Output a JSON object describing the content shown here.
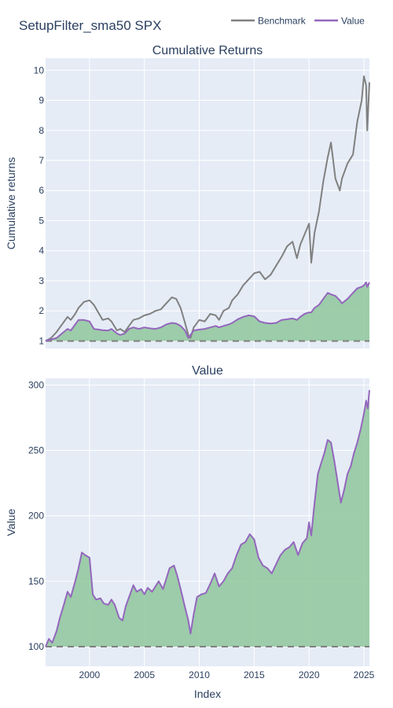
{
  "page_title": "SetupFilter_sma50 SPX",
  "legend": [
    {
      "name": "Benchmark",
      "color": "#808080"
    },
    {
      "name": "Value",
      "color": "#9467bd"
    }
  ],
  "colors": {
    "plot_bg": "#e5ecf6",
    "grid": "#ffffff",
    "fill": "#8fc79b",
    "baseline": "#808080",
    "text": "#2a3f5f"
  },
  "chart_data": [
    {
      "type": "line",
      "title": "Cumulative Returns",
      "ylabel": "Cumulative returns",
      "xlabel": "",
      "xlim": [
        1996.0,
        2025.5
      ],
      "ylim": [
        0.75,
        10.4
      ],
      "yticks": [
        1,
        2,
        3,
        4,
        5,
        6,
        7,
        8,
        9,
        10
      ],
      "xticks": [
        2000,
        2005,
        2010,
        2015,
        2020,
        2025
      ],
      "x_ticklabels_shown": false,
      "baseline": 1,
      "fill_series": "Value",
      "series": [
        {
          "name": "Benchmark",
          "color": "#808080",
          "x": [
            1996.0,
            1996.5,
            1997.0,
            1997.5,
            1998.0,
            1998.3,
            1998.7,
            1999.0,
            1999.5,
            2000.0,
            2000.4,
            2000.8,
            2001.2,
            2001.7,
            2002.0,
            2002.5,
            2002.8,
            2003.2,
            2003.6,
            2004.0,
            2004.5,
            2005.0,
            2005.5,
            2006.0,
            2006.5,
            2007.0,
            2007.5,
            2007.9,
            2008.3,
            2008.7,
            2009.0,
            2009.2,
            2009.5,
            2010.0,
            2010.5,
            2011.0,
            2011.5,
            2011.8,
            2012.2,
            2012.7,
            2013.0,
            2013.5,
            2014.0,
            2014.5,
            2015.0,
            2015.5,
            2016.0,
            2016.5,
            2017.0,
            2017.5,
            2018.0,
            2018.5,
            2018.9,
            2019.2,
            2019.6,
            2020.0,
            2020.2,
            2020.5,
            2020.9,
            2021.3,
            2021.7,
            2022.0,
            2022.4,
            2022.8,
            2023.0,
            2023.5,
            2024.0,
            2024.4,
            2024.8,
            2025.0,
            2025.2,
            2025.3,
            2025.5
          ],
          "y": [
            1.0,
            1.1,
            1.3,
            1.55,
            1.8,
            1.7,
            1.9,
            2.1,
            2.3,
            2.35,
            2.2,
            1.95,
            1.7,
            1.75,
            1.65,
            1.35,
            1.4,
            1.3,
            1.5,
            1.7,
            1.75,
            1.85,
            1.9,
            2.0,
            2.05,
            2.25,
            2.45,
            2.4,
            2.1,
            1.6,
            1.2,
            1.1,
            1.45,
            1.7,
            1.65,
            1.9,
            1.85,
            1.7,
            2.0,
            2.1,
            2.35,
            2.55,
            2.85,
            3.05,
            3.25,
            3.3,
            3.05,
            3.2,
            3.5,
            3.8,
            4.15,
            4.3,
            3.75,
            4.2,
            4.55,
            4.9,
            3.6,
            4.6,
            5.3,
            6.3,
            7.1,
            7.6,
            6.4,
            6.0,
            6.4,
            6.9,
            7.2,
            8.3,
            9.0,
            9.8,
            9.5,
            8.0,
            9.6
          ]
        },
        {
          "name": "Value",
          "color": "#9467bd",
          "x": [
            1996.0,
            1996.5,
            1997.0,
            1997.5,
            1998.0,
            1998.3,
            1998.7,
            1999.0,
            1999.5,
            2000.0,
            2000.4,
            2000.8,
            2001.2,
            2001.7,
            2002.0,
            2002.5,
            2002.8,
            2003.2,
            2003.6,
            2004.0,
            2004.5,
            2005.0,
            2005.5,
            2006.0,
            2006.5,
            2007.0,
            2007.5,
            2007.9,
            2008.3,
            2008.7,
            2009.0,
            2009.2,
            2009.5,
            2010.0,
            2010.5,
            2011.0,
            2011.5,
            2011.8,
            2012.2,
            2012.7,
            2013.0,
            2013.5,
            2014.0,
            2014.5,
            2015.0,
            2015.5,
            2016.0,
            2016.5,
            2017.0,
            2017.5,
            2018.0,
            2018.5,
            2018.9,
            2019.2,
            2019.6,
            2020.0,
            2020.2,
            2020.5,
            2020.9,
            2021.3,
            2021.7,
            2022.0,
            2022.4,
            2022.8,
            2023.0,
            2023.5,
            2024.0,
            2024.4,
            2024.8,
            2025.0,
            2025.2,
            2025.3,
            2025.5
          ],
          "y": [
            1.0,
            1.05,
            1.1,
            1.25,
            1.4,
            1.35,
            1.55,
            1.7,
            1.7,
            1.65,
            1.4,
            1.38,
            1.36,
            1.35,
            1.4,
            1.25,
            1.2,
            1.25,
            1.4,
            1.45,
            1.4,
            1.45,
            1.42,
            1.4,
            1.45,
            1.55,
            1.6,
            1.58,
            1.5,
            1.35,
            1.1,
            1.2,
            1.35,
            1.38,
            1.4,
            1.45,
            1.5,
            1.45,
            1.5,
            1.55,
            1.6,
            1.72,
            1.8,
            1.85,
            1.82,
            1.65,
            1.6,
            1.58,
            1.6,
            1.7,
            1.72,
            1.75,
            1.7,
            1.8,
            1.9,
            1.95,
            1.95,
            2.1,
            2.2,
            2.4,
            2.6,
            2.55,
            2.5,
            2.35,
            2.25,
            2.4,
            2.6,
            2.75,
            2.8,
            2.85,
            2.95,
            2.8,
            2.95
          ]
        }
      ]
    },
    {
      "type": "area",
      "title": "Value",
      "ylabel": "Value",
      "xlabel": "Index",
      "xlim": [
        1996.0,
        2025.5
      ],
      "ylim": [
        85,
        305
      ],
      "yticks": [
        100,
        150,
        200,
        250,
        300
      ],
      "xticks": [
        2000,
        2005,
        2010,
        2015,
        2020,
        2025
      ],
      "x_ticklabels_shown": true,
      "baseline": 100,
      "fill_series": "Value",
      "series": [
        {
          "name": "Value",
          "color": "#9467bd",
          "x": [
            1996.0,
            1996.3,
            1996.6,
            1997.0,
            1997.3,
            1997.7,
            1998.0,
            1998.3,
            1998.7,
            1999.0,
            1999.3,
            1999.6,
            2000.0,
            2000.3,
            2000.6,
            2001.0,
            2001.3,
            2001.7,
            2002.0,
            2002.3,
            2002.7,
            2003.0,
            2003.3,
            2003.7,
            2004.0,
            2004.3,
            2004.7,
            2005.0,
            2005.3,
            2005.7,
            2006.0,
            2006.3,
            2006.7,
            2007.0,
            2007.3,
            2007.7,
            2008.0,
            2008.3,
            2008.7,
            2009.0,
            2009.2,
            2009.5,
            2009.8,
            2010.2,
            2010.6,
            2011.0,
            2011.4,
            2011.8,
            2012.2,
            2012.6,
            2013.0,
            2013.4,
            2013.8,
            2014.2,
            2014.6,
            2015.0,
            2015.4,
            2015.8,
            2016.2,
            2016.6,
            2017.0,
            2017.4,
            2017.8,
            2018.2,
            2018.6,
            2019.0,
            2019.4,
            2019.8,
            2020.0,
            2020.2,
            2020.5,
            2020.8,
            2021.1,
            2021.4,
            2021.7,
            2022.0,
            2022.3,
            2022.6,
            2022.9,
            2023.2,
            2023.5,
            2023.8,
            2024.1,
            2024.4,
            2024.7,
            2025.0,
            2025.2,
            2025.35,
            2025.5
          ],
          "y": [
            100,
            106,
            103,
            112,
            122,
            133,
            142,
            138,
            150,
            160,
            172,
            170,
            168,
            140,
            136,
            137,
            133,
            132,
            136,
            132,
            122,
            120,
            131,
            140,
            147,
            142,
            144,
            140,
            145,
            142,
            146,
            150,
            144,
            152,
            160,
            162,
            154,
            144,
            130,
            120,
            110,
            125,
            138,
            140,
            141,
            148,
            156,
            146,
            150,
            156,
            160,
            170,
            178,
            180,
            186,
            182,
            168,
            162,
            160,
            156,
            163,
            170,
            174,
            176,
            180,
            170,
            179,
            183,
            195,
            185,
            210,
            232,
            240,
            248,
            258,
            256,
            242,
            226,
            210,
            220,
            232,
            238,
            248,
            256,
            266,
            278,
            288,
            282,
            296
          ]
        }
      ]
    }
  ]
}
